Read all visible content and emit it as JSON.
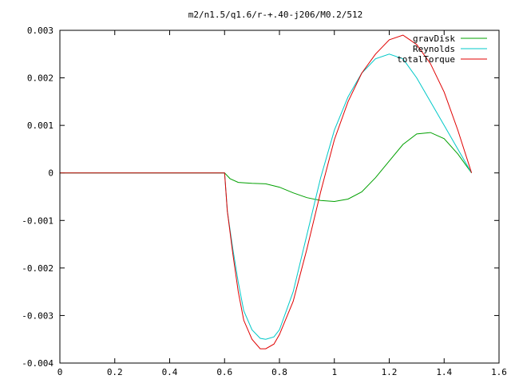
{
  "chart_data": {
    "type": "line",
    "title": "m2/n1.5/q1.6/r-+.40-j206/M0.2/512",
    "xlabel": "",
    "ylabel": "",
    "xlim": [
      0,
      1.6
    ],
    "ylim": [
      -0.004,
      0.003
    ],
    "x_ticks": [
      0,
      0.2,
      0.4,
      0.6,
      0.8,
      1,
      1.2,
      1.4,
      1.6
    ],
    "x_tick_labels": [
      "0",
      "0.2",
      "0.4",
      "0.6",
      "0.8",
      "1",
      "1.2",
      "1.4",
      "1.6"
    ],
    "y_ticks": [
      -0.004,
      -0.003,
      -0.002,
      -0.001,
      0,
      0.001,
      0.002,
      0.003
    ],
    "y_tick_labels": [
      "-0.004",
      "-0.003",
      "-0.002",
      "-0.001",
      "0",
      "0.001",
      "0.002",
      "0.003"
    ],
    "grid": false,
    "legend_position": "top-right",
    "series": [
      {
        "name": "gravDisk",
        "color": "#00a000",
        "x": [
          0,
          0.6,
          0.62,
          0.65,
          0.7,
          0.75,
          0.8,
          0.85,
          0.9,
          0.95,
          1.0,
          1.05,
          1.1,
          1.15,
          1.2,
          1.25,
          1.3,
          1.35,
          1.4,
          1.45,
          1.5
        ],
        "y": [
          0,
          0,
          -0.00012,
          -0.0002,
          -0.00022,
          -0.00023,
          -0.0003,
          -0.00042,
          -0.00052,
          -0.00058,
          -0.0006,
          -0.00055,
          -0.0004,
          -0.0001,
          0.00025,
          0.0006,
          0.00082,
          0.00085,
          0.00072,
          0.0004,
          0.0
        ]
      },
      {
        "name": "Reynolds",
        "color": "#00c8c8",
        "x": [
          0,
          0.6,
          0.61,
          0.63,
          0.65,
          0.67,
          0.7,
          0.73,
          0.75,
          0.78,
          0.8,
          0.85,
          0.9,
          0.95,
          1.0,
          1.05,
          1.1,
          1.15,
          1.2,
          1.25,
          1.3,
          1.35,
          1.4,
          1.45,
          1.5
        ],
        "y": [
          0,
          0,
          -0.0008,
          -0.0016,
          -0.0023,
          -0.0029,
          -0.0033,
          -0.00348,
          -0.0035,
          -0.00345,
          -0.0033,
          -0.0025,
          -0.0013,
          -0.0001,
          0.0009,
          0.0016,
          0.0021,
          0.0024,
          0.0025,
          0.0024,
          0.002,
          0.0015,
          0.001,
          0.0005,
          0.0
        ]
      },
      {
        "name": "totalTorque",
        "color": "#e00000",
        "x": [
          0,
          0.6,
          0.61,
          0.63,
          0.65,
          0.67,
          0.7,
          0.73,
          0.75,
          0.78,
          0.8,
          0.85,
          0.9,
          0.95,
          1.0,
          1.05,
          1.1,
          1.15,
          1.2,
          1.25,
          1.3,
          1.35,
          1.4,
          1.45,
          1.5
        ],
        "y": [
          0,
          0,
          -0.0008,
          -0.0017,
          -0.0025,
          -0.0031,
          -0.0035,
          -0.0037,
          -0.0037,
          -0.0036,
          -0.0034,
          -0.0027,
          -0.0016,
          -0.0004,
          0.0007,
          0.0015,
          0.0021,
          0.0025,
          0.0028,
          0.0029,
          0.0027,
          0.0023,
          0.0017,
          0.0009,
          0.0
        ]
      }
    ]
  }
}
